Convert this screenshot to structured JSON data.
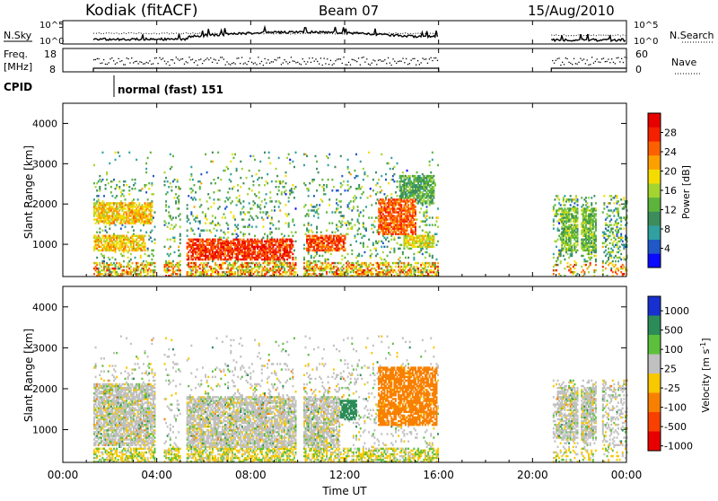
{
  "header": {
    "station": "Kodiak (fitACF)",
    "beam": "Beam 07",
    "date": "15/Aug/2010"
  },
  "summary": {
    "nsky_label": "N.Sky",
    "nsearch_label": "N.Search",
    "freq_label_line1": "Freq.",
    "freq_label_line2": "[MHz]",
    "nave_label": "Nave",
    "cpid_label": "CPID",
    "cpid_text": "normal (fast) 151",
    "noise_ticks_left": [
      "10^5",
      "10^0"
    ],
    "noise_ticks_right": [
      "10^5",
      "10^0"
    ],
    "freq_ticks": [
      "18",
      "8"
    ],
    "nave_ticks": [
      "60",
      "0"
    ]
  },
  "chart_data": [
    {
      "type": "heatmap",
      "name": "power",
      "ylabel": "Slant Range [km]",
      "ylim": [
        200,
        4500
      ],
      "yticks": [
        "1000",
        "2000",
        "3000",
        "4000"
      ],
      "xlim": [
        0,
        24
      ],
      "colorbar": {
        "title": "Power [dB]",
        "ticks": [
          "4",
          "8",
          "12",
          "16",
          "20",
          "24",
          "28"
        ],
        "range": [
          0,
          32
        ],
        "colors": [
          "#0a0aff",
          "#2058c8",
          "#30a0a0",
          "#3c8c5c",
          "#5cb43c",
          "#a4d430",
          "#f4dc00",
          "#fca000",
          "#fc6000",
          "#f42000",
          "#e80000"
        ]
      },
      "data_gaps_hours": [
        [
          0,
          1.3
        ],
        [
          16.0,
          20.8
        ]
      ],
      "regions": [
        {
          "t0": 1.3,
          "t1": 3.5,
          "r0": 800,
          "r1": 1200,
          "dB": 20
        },
        {
          "t0": 1.3,
          "t1": 3.8,
          "r0": 1500,
          "r1": 2000,
          "dB": 20
        },
        {
          "t0": 5.2,
          "t1": 9.8,
          "r0": 600,
          "r1": 1100,
          "dB": 27
        },
        {
          "t0": 10.3,
          "t1": 12.0,
          "r0": 800,
          "r1": 1200,
          "dB": 26
        },
        {
          "t0": 13.4,
          "t1": 15.0,
          "r0": 1200,
          "r1": 2100,
          "dB": 25
        },
        {
          "t0": 14.5,
          "t1": 15.8,
          "r0": 900,
          "r1": 1200,
          "dB": 18
        },
        {
          "t0": 14.3,
          "t1": 15.8,
          "r0": 2000,
          "r1": 2700,
          "dB": 12
        },
        {
          "t0": 21.2,
          "t1": 22.8,
          "r0": 800,
          "r1": 1900,
          "dB": 14
        }
      ]
    },
    {
      "type": "heatmap",
      "name": "velocity",
      "xlabel": "Time UT",
      "xticks": [
        "00:00",
        "04:00",
        "08:00",
        "12:00",
        "16:00",
        "20:00",
        "00:00"
      ],
      "xlim": [
        0,
        24
      ],
      "ylabel": "Slant Range [km]",
      "ylim": [
        200,
        4500
      ],
      "yticks": [
        "1000",
        "2000",
        "3000",
        "4000"
      ],
      "colorbar": {
        "title": "Velocity [m s^-1]",
        "ticks": [
          "1000",
          "500",
          "100",
          "25",
          "-25",
          "-100",
          "-500",
          "-1000"
        ],
        "colors": [
          "#1830d0",
          "#2c8c58",
          "#5cc03c",
          "#c0c0c0",
          "#f8c800",
          "#f88000",
          "#f84000",
          "#e80000"
        ]
      },
      "data_gaps_hours": [
        [
          0,
          1.3
        ],
        [
          16.0,
          20.8
        ]
      ],
      "regions": [
        {
          "t0": 1.3,
          "t1": 4.0,
          "r0": 600,
          "r1": 2100,
          "v": 0
        },
        {
          "t0": 5.2,
          "t1": 11.8,
          "r0": 500,
          "r1": 1800,
          "v": 0
        },
        {
          "t0": 13.4,
          "t1": 15.9,
          "r0": 1100,
          "r1": 2500,
          "v": -200
        },
        {
          "t0": 11.2,
          "t1": 12.5,
          "r0": 1200,
          "r1": 1700,
          "v": 300
        },
        {
          "t0": 21.0,
          "t1": 23.0,
          "r0": 700,
          "r1": 2000,
          "v": 0
        }
      ]
    }
  ]
}
